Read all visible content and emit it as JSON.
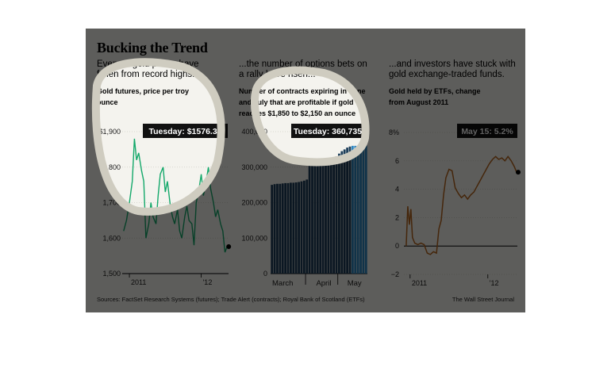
{
  "header": {
    "title": "Bucking the Trend",
    "sources": "Sources: FactSet Research Systems (futures); Trade Alert (contracts); Royal Bank of Scotland (ETFs)",
    "credit": "The Wall Street Journal"
  },
  "panels": {
    "gold": {
      "subtitle": "Even as gold prices have fallen from record highs...",
      "label": "Gold futures, price per troy ounce",
      "callout": "Tuesday: $1576.30"
    },
    "options": {
      "subtitle": "...the number of options bets on a rally have risen...",
      "label": "Number of contracts expiring in June and July that are profitable if gold reaches $1,850 to $2,150 an ounce",
      "callout": "Tuesday: 360,735"
    },
    "etf": {
      "subtitle": "...and investors have stuck with gold exchange-traded funds.",
      "label": "Gold held by ETFs, change from August 2011",
      "callout": "May 15: 5.2%"
    }
  },
  "colors": {
    "background": "#f4f3ee",
    "gold_line": "#13a86a",
    "bars": "#1d3e5a",
    "bar_highlight": "#2e86c1",
    "etf_line": "#b5651d",
    "dim_overlay": "#000000",
    "highlight_ring": "#cfccc0"
  },
  "chart_data": [
    {
      "type": "line",
      "title": "Gold futures, price per troy ounce",
      "ylim": [
        1500,
        1900
      ],
      "yticks": [
        1500,
        1600,
        1700,
        1800,
        1900
      ],
      "ytick_labels": [
        "1,500",
        "1,600",
        "1,700",
        "1,800",
        "$1,900"
      ],
      "xlabels": [
        "2011",
        "'12"
      ],
      "xtick_positions": [
        2011.0,
        2012.0
      ],
      "xlim": [
        2010.9,
        2012.38
      ],
      "series": [
        {
          "x": [
            2010.92,
            2010.96,
            2011.0,
            2011.04,
            2011.07,
            2011.1,
            2011.13,
            2011.17,
            2011.2,
            2011.23,
            2011.27,
            2011.3,
            2011.33,
            2011.37,
            2011.4,
            2011.43,
            2011.47,
            2011.5,
            2011.53,
            2011.57,
            2011.6,
            2011.63,
            2011.67,
            2011.7,
            2011.73,
            2011.77,
            2011.8,
            2011.83,
            2011.87,
            2011.9,
            2011.93,
            2011.97,
            2012.0,
            2012.03,
            2012.07,
            2012.1,
            2012.13,
            2012.17,
            2012.2,
            2012.23,
            2012.27,
            2012.3,
            2012.33,
            2012.36
          ],
          "values": [
            1620,
            1650,
            1700,
            1760,
            1880,
            1820,
            1840,
            1790,
            1760,
            1600,
            1640,
            1700,
            1660,
            1640,
            1720,
            1780,
            1800,
            1730,
            1760,
            1690,
            1660,
            1640,
            1680,
            1620,
            1600,
            1660,
            1690,
            1650,
            1640,
            1580,
            1700,
            1740,
            1780,
            1720,
            1760,
            1800,
            1740,
            1700,
            1660,
            1680,
            1640,
            1620,
            1560,
            1576
          ]
        }
      ]
    },
    {
      "type": "bar",
      "title": "Number of contracts expiring in June and July that are profitable if gold reaches $1,850 to $2,150 an ounce",
      "ylim": [
        0,
        400000
      ],
      "yticks": [
        0,
        100000,
        200000,
        300000,
        400000
      ],
      "ytick_labels": [
        "0",
        "100,000",
        "200,000",
        "300,000",
        "400,000"
      ],
      "xlabels": [
        "March",
        "April",
        "May"
      ],
      "values": [
        250000,
        252000,
        253000,
        253000,
        254000,
        255000,
        255000,
        256000,
        256000,
        257000,
        258000,
        260000,
        262000,
        265000,
        310000,
        311000,
        312000,
        313000,
        314000,
        315000,
        316000,
        318000,
        320000,
        325000,
        330000,
        338000,
        345000,
        350000,
        355000,
        358000,
        360000,
        360000,
        360000,
        360000,
        360000,
        360735
      ]
    },
    {
      "type": "line",
      "title": "Gold held by ETFs, change from August 2011",
      "ylim": [
        -2,
        8
      ],
      "yticks": [
        -2,
        0,
        2,
        4,
        6,
        8
      ],
      "ytick_labels": [
        "−2",
        "0",
        "2",
        "4",
        "6",
        "8%"
      ],
      "xlabels": [
        "2011",
        "'12"
      ],
      "xtick_positions": [
        2011.0,
        2012.0
      ],
      "xlim": [
        2010.92,
        2012.38
      ],
      "series": [
        {
          "x": [
            2010.95,
            2010.97,
            2010.99,
            2011.01,
            2011.03,
            2011.06,
            2011.1,
            2011.14,
            2011.18,
            2011.22,
            2011.26,
            2011.3,
            2011.34,
            2011.37,
            2011.4,
            2011.43,
            2011.46,
            2011.5,
            2011.54,
            2011.58,
            2011.62,
            2011.66,
            2011.7,
            2011.74,
            2011.78,
            2011.82,
            2011.86,
            2011.9,
            2011.94,
            2011.98,
            2012.02,
            2012.06,
            2012.1,
            2012.14,
            2012.18,
            2012.22,
            2012.26,
            2012.3,
            2012.34,
            2012.37
          ],
          "values": [
            0,
            2.8,
            1.5,
            2.6,
            0.6,
            0.2,
            0.1,
            0.2,
            0.1,
            -0.5,
            -0.6,
            -0.4,
            -0.5,
            1.2,
            1.8,
            3.6,
            4.8,
            5.4,
            5.3,
            4.1,
            3.7,
            3.4,
            3.6,
            3.3,
            3.6,
            3.8,
            4.2,
            4.6,
            5.0,
            5.4,
            5.8,
            6.1,
            6.3,
            6.1,
            6.2,
            6.0,
            6.3,
            6.0,
            5.6,
            5.2
          ]
        }
      ]
    }
  ]
}
